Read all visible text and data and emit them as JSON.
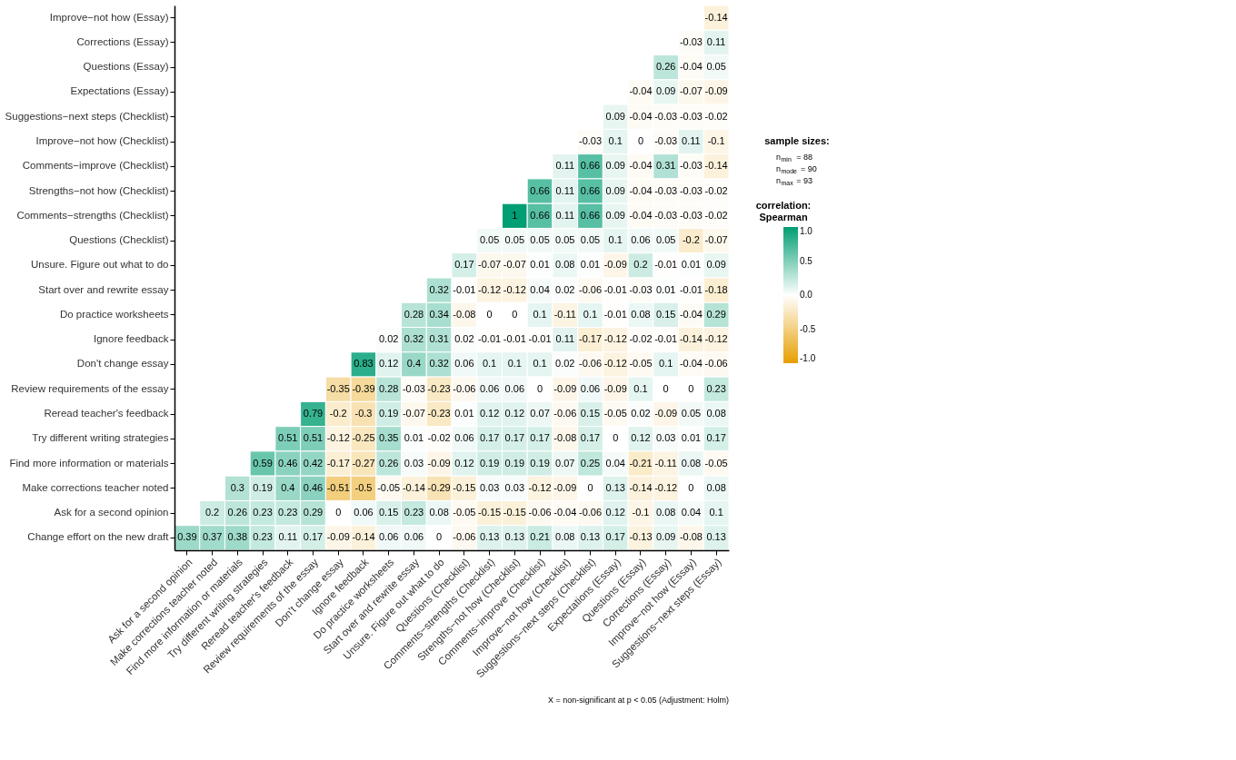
{
  "chart_data": {
    "type": "heatmap",
    "categories": [
      "Ask for a second opinion",
      "Make corrections teacher noted",
      "Find more information or materials",
      "Try different writing strategies",
      "Reread teacher's feedback",
      "Review requirements of the essay",
      "Don't change essay",
      "Ignore feedback",
      "Do practice worksheets",
      "Start over and rewrite essay",
      "Unsure. Figure out what to do",
      "Questions (Checklist)",
      "Comments−strengths (Checklist)",
      "Strengths−not how (Checklist)",
      "Comments−improve (Checklist)",
      "Improve−not how (Checklist)",
      "Suggestions−next steps (Checklist)",
      "Expectations (Essay)",
      "Questions (Essay)",
      "Corrections (Essay)",
      "Improve−not how (Essay)",
      "Suggestions−next steps (Essay)"
    ],
    "y_categories": [
      "Improve−not how (Essay)",
      "Corrections (Essay)",
      "Questions (Essay)",
      "Expectations (Essay)",
      "Suggestions−next steps (Checklist)",
      "Improve−not how (Checklist)",
      "Comments−improve (Checklist)",
      "Strengths−not how (Checklist)",
      "Comments−strengths (Checklist)",
      "Questions (Checklist)",
      "Unsure. Figure out what to do",
      "Start over and rewrite essay",
      "Do practice worksheets",
      "Ignore feedback",
      "Don't change essay",
      "Review requirements of the essay",
      "Reread teacher's feedback",
      "Try different writing strategies",
      "Find more information or materials",
      "Make corrections teacher noted",
      "Ask for a second opinion",
      "Change effort on the new draft"
    ],
    "cells": [
      [
        null,
        null,
        null,
        null,
        null,
        null,
        null,
        null,
        null,
        null,
        null,
        null,
        null,
        null,
        null,
        null,
        null,
        null,
        null,
        null,
        null,
        -0.14
      ],
      [
        null,
        null,
        null,
        null,
        null,
        null,
        null,
        null,
        null,
        null,
        null,
        null,
        null,
        null,
        null,
        null,
        null,
        null,
        null,
        null,
        -0.03,
        0.11
      ],
      [
        null,
        null,
        null,
        null,
        null,
        null,
        null,
        null,
        null,
        null,
        null,
        null,
        null,
        null,
        null,
        null,
        null,
        null,
        null,
        0.26,
        -0.04,
        0.05
      ],
      [
        null,
        null,
        null,
        null,
        null,
        null,
        null,
        null,
        null,
        null,
        null,
        null,
        null,
        null,
        null,
        null,
        null,
        null,
        -0.04,
        0.09,
        -0.07,
        -0.09
      ],
      [
        null,
        null,
        null,
        null,
        null,
        null,
        null,
        null,
        null,
        null,
        null,
        null,
        null,
        null,
        null,
        null,
        null,
        0.09,
        -0.04,
        -0.03,
        -0.03,
        -0.02
      ],
      [
        null,
        null,
        null,
        null,
        null,
        null,
        null,
        null,
        null,
        null,
        null,
        null,
        null,
        null,
        null,
        null,
        -0.03,
        0.1,
        0,
        -0.03,
        0.11,
        -0.1
      ],
      [
        null,
        null,
        null,
        null,
        null,
        null,
        null,
        null,
        null,
        null,
        null,
        null,
        null,
        null,
        null,
        0.11,
        0.66,
        0.09,
        -0.04,
        0.31,
        -0.03,
        -0.14
      ],
      [
        null,
        null,
        null,
        null,
        null,
        null,
        null,
        null,
        null,
        null,
        null,
        null,
        null,
        null,
        0.66,
        0.11,
        0.66,
        0.09,
        -0.04,
        -0.03,
        -0.03,
        -0.02
      ],
      [
        null,
        null,
        null,
        null,
        null,
        null,
        null,
        null,
        null,
        null,
        null,
        null,
        null,
        1,
        0.66,
        0.11,
        0.66,
        0.09,
        -0.04,
        -0.03,
        -0.03,
        -0.02
      ],
      [
        null,
        null,
        null,
        null,
        null,
        null,
        null,
        null,
        null,
        null,
        null,
        null,
        0.05,
        0.05,
        0.05,
        0.05,
        0.05,
        0.1,
        0.06,
        0.05,
        -0.2,
        -0.07
      ],
      [
        null,
        null,
        null,
        null,
        null,
        null,
        null,
        null,
        null,
        null,
        null,
        0.17,
        -0.07,
        -0.07,
        0.01,
        0.08,
        0.01,
        -0.09,
        0.2,
        -0.01,
        0.01,
        0.09
      ],
      [
        null,
        null,
        null,
        null,
        null,
        null,
        null,
        null,
        null,
        null,
        0.32,
        -0.01,
        -0.12,
        -0.12,
        0.04,
        0.02,
        -0.06,
        -0.01,
        -0.03,
        0.01,
        -0.01,
        -0.18
      ],
      [
        null,
        null,
        null,
        null,
        null,
        null,
        null,
        null,
        null,
        0.28,
        0.34,
        -0.08,
        0,
        0,
        0.1,
        -0.11,
        0.1,
        -0.01,
        0.08,
        0.15,
        -0.04,
        0.29
      ],
      [
        null,
        null,
        null,
        null,
        null,
        null,
        null,
        null,
        0.02,
        0.32,
        0.31,
        0.02,
        -0.01,
        -0.01,
        -0.01,
        0.11,
        -0.17,
        -0.12,
        -0.02,
        -0.01,
        -0.14,
        -0.12
      ],
      [
        null,
        null,
        null,
        null,
        null,
        null,
        null,
        0.83,
        0.12,
        0.4,
        0.32,
        0.06,
        0.1,
        0.1,
        0.1,
        0.02,
        -0.06,
        -0.12,
        -0.05,
        0.1,
        -0.04,
        -0.06
      ],
      [
        null,
        null,
        null,
        null,
        null,
        null,
        -0.35,
        -0.39,
        0.28,
        -0.03,
        -0.23,
        -0.06,
        0.06,
        0.06,
        0,
        -0.09,
        0.06,
        -0.09,
        0.1,
        0,
        0,
        0.23
      ],
      [
        null,
        null,
        null,
        null,
        null,
        0.79,
        -0.2,
        -0.3,
        0.19,
        -0.07,
        -0.23,
        0.01,
        0.12,
        0.12,
        0.07,
        -0.06,
        0.15,
        -0.05,
        0.02,
        -0.09,
        0.05,
        0.08
      ],
      [
        null,
        null,
        null,
        null,
        0.51,
        0.51,
        -0.12,
        -0.25,
        0.35,
        0.01,
        -0.02,
        0.06,
        0.17,
        0.17,
        0.17,
        -0.08,
        0.17,
        0,
        0.12,
        0.03,
        0.01,
        0.17
      ],
      [
        null,
        null,
        null,
        0.59,
        0.46,
        0.42,
        -0.17,
        -0.27,
        0.26,
        0.03,
        -0.09,
        0.12,
        0.19,
        0.19,
        0.19,
        0.07,
        0.25,
        0.04,
        -0.21,
        -0.11,
        0.08,
        -0.05
      ],
      [
        null,
        null,
        0.3,
        0.19,
        0.4,
        0.46,
        -0.51,
        -0.5,
        -0.05,
        -0.14,
        -0.29,
        -0.15,
        0.03,
        0.03,
        -0.12,
        -0.09,
        0,
        0.13,
        -0.14,
        -0.12,
        0,
        0.08
      ],
      [
        null,
        0.2,
        0.26,
        0.23,
        0.23,
        0.29,
        0,
        0.06,
        0.15,
        0.23,
        0.08,
        -0.05,
        -0.15,
        -0.15,
        -0.06,
        -0.04,
        -0.06,
        0.12,
        -0.1,
        0.08,
        0.04,
        0.1
      ],
      [
        0.39,
        0.37,
        0.38,
        0.23,
        0.11,
        0.17,
        -0.09,
        -0.14,
        0.06,
        0.06,
        0,
        -0.06,
        0.13,
        0.13,
        0.21,
        0.08,
        0.13,
        0.17,
        -0.13,
        0.09,
        -0.08,
        0.13
      ]
    ],
    "data_labels": true,
    "legend_title": "correlation: Spearman",
    "clim": [
      -1.0,
      1.0
    ],
    "cticks": [
      {
        "value": 1.0,
        "label": "1.0"
      },
      {
        "value": 0.5,
        "label": "0.5"
      },
      {
        "value": 0.0,
        "label": "0.0"
      },
      {
        "value": -0.5,
        "label": "-0.5"
      },
      {
        "value": -1.0,
        "label": "-1.0"
      }
    ],
    "grid": false,
    "annotations": [
      "sample sizes:",
      "n$_{min}$ = 88",
      "n$_{mode}$ = 90",
      "n$_{max}$ = 93",
      "X = non-significant at p < 0.05 (Adjustment: Holm)"
    ]
  }
}
